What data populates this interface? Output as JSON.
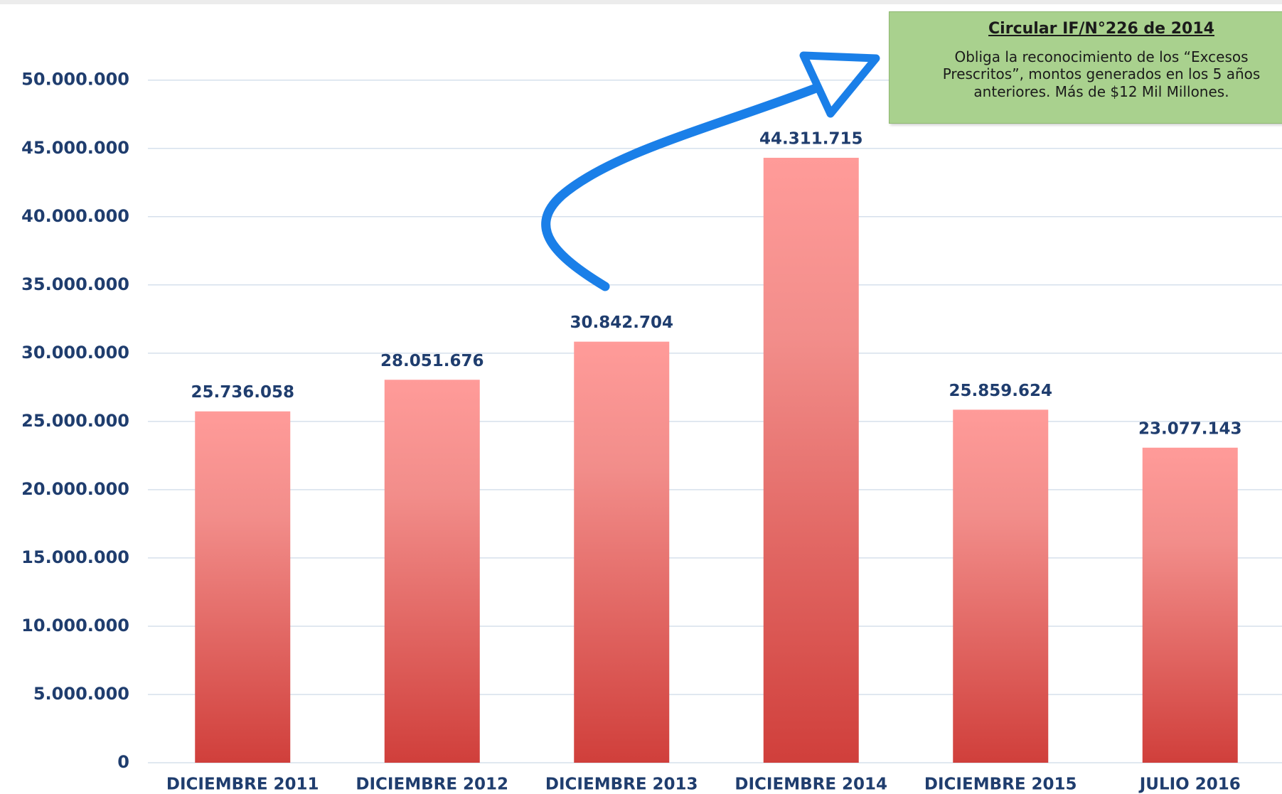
{
  "chart_data": {
    "type": "bar",
    "categories": [
      "DICIEMBRE 2011",
      "DICIEMBRE 2012",
      "DICIEMBRE 2013",
      "DICIEMBRE 2014",
      "DICIEMBRE 2015",
      "JULIO 2016"
    ],
    "values": [
      25736058,
      28051676,
      30842704,
      44311715,
      25859624,
      23077143
    ],
    "value_labels": [
      "25.736.058",
      "28.051.676",
      "30.842.704",
      "44.311.715",
      "25.859.624",
      "23.077.143"
    ],
    "color": "#e56a66",
    "ylim": [
      0,
      55000000
    ],
    "yticks": [
      {
        "value": 0,
        "label": "0"
      },
      {
        "value": 5000000,
        "label": "5.000.000"
      },
      {
        "value": 10000000,
        "label": "10.000.000"
      },
      {
        "value": 15000000,
        "label": "15.000.000"
      },
      {
        "value": 20000000,
        "label": "20.000.000"
      },
      {
        "value": 25000000,
        "label": "25.000.000"
      },
      {
        "value": 30000000,
        "label": "30.000.000"
      },
      {
        "value": 35000000,
        "label": "35.000.000"
      },
      {
        "value": 40000000,
        "label": "40.000.000"
      },
      {
        "value": 45000000,
        "label": "45.000.000"
      },
      {
        "value": 50000000,
        "label": "50.000.000"
      }
    ],
    "grid": true,
    "annotation": {
      "title": "Circular IF/N°226 de 2014",
      "lines": [
        "Obliga la reconocimiento de los “Excesos",
        "Prescritos”, montos generados en los 5 años",
        "anteriores. Más de $12 Mil Millones."
      ]
    }
  }
}
